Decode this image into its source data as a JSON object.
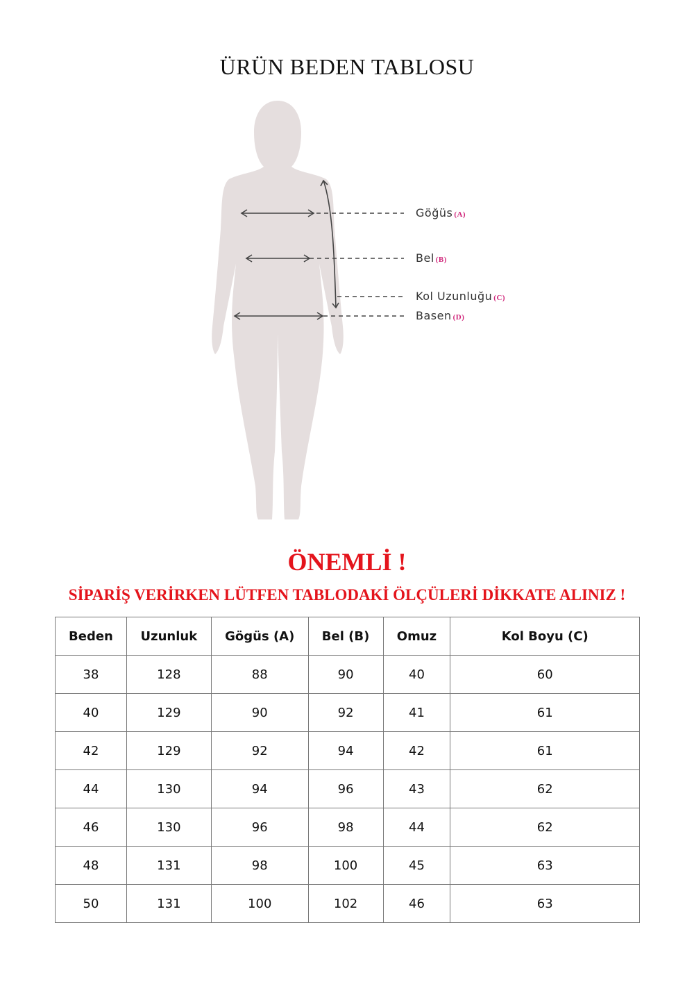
{
  "title": "ÜRÜN BEDEN TABLOSU",
  "figure": {
    "labels": [
      {
        "text": "Göğüs",
        "key": "(A)"
      },
      {
        "text": "Bel",
        "key": "(B)"
      },
      {
        "text": "Kol Uzunluğu",
        "key": "(C)"
      },
      {
        "text": "Basen",
        "key": "(D)"
      }
    ],
    "silhouette_color": "#e5dede",
    "key_color": "#d0267a"
  },
  "notice": {
    "heading": "ÖNEMLİ !",
    "text": "SİPARİŞ VERİRKEN LÜTFEN TABLODAKİ ÖLÇÜLERİ DİKKATE ALINIZ !",
    "color": "#e4141c"
  },
  "table": {
    "headers": [
      "Beden",
      "Uzunluk",
      "Gögüs (A)",
      "Bel (B)",
      "Omuz",
      "Kol Boyu (C)"
    ],
    "rows": [
      [
        "38",
        "128",
        "88",
        "90",
        "40",
        "60"
      ],
      [
        "40",
        "129",
        "90",
        "92",
        "41",
        "61"
      ],
      [
        "42",
        "129",
        "92",
        "94",
        "42",
        "61"
      ],
      [
        "44",
        "130",
        "94",
        "96",
        "43",
        "62"
      ],
      [
        "46",
        "130",
        "96",
        "98",
        "44",
        "62"
      ],
      [
        "48",
        "131",
        "98",
        "100",
        "45",
        "63"
      ],
      [
        "50",
        "131",
        "100",
        "102",
        "46",
        "63"
      ]
    ]
  }
}
